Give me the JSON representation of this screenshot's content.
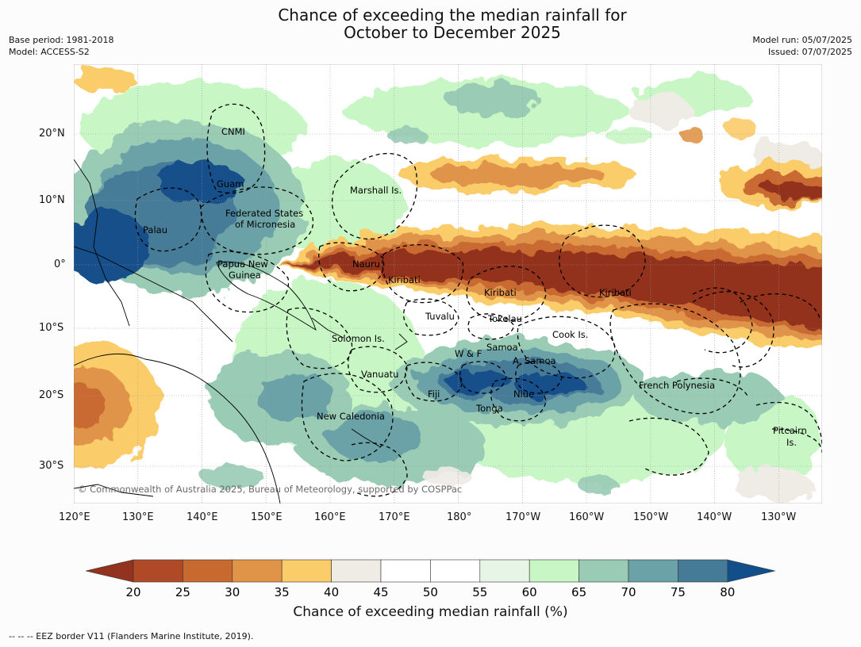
{
  "title_line1": "Chance of exceeding the median rainfall for",
  "title_line2": "October to December 2025",
  "meta_left": [
    "Base period: 1981-2018",
    "Model: ACCESS-S2"
  ],
  "meta_right": [
    "Model run: 05/07/2025",
    "Issued: 07/07/2025"
  ],
  "copyright": "© Commonwealth of Australia 2025, Bureau of Meteorology, supported by COSPPac",
  "lon_ticks": [
    "120°E",
    "130°E",
    "140°E",
    "150°E",
    "160°E",
    "170°E",
    "180°",
    "170°W",
    "160°W",
    "150°W",
    "140°W",
    "130°W"
  ],
  "lat_ticks": [
    "20°N",
    "10°N",
    "0°",
    "10°S",
    "20°S",
    "30°S"
  ],
  "region_labels": {
    "cnmi": "CNMI",
    "guam": "Guam",
    "marshall": "Marshall Is.",
    "fsm1": "Federated States",
    "fsm2": "of Micronesia",
    "palau": "Palau",
    "png1": "Papua New",
    "png2": "Guinea",
    "nauru": "Nauru",
    "kiribati_w": "Kiribati",
    "kiribati_c": "Kiribati",
    "kiribati_e": "Kiribati",
    "tuvalu": "Tuvalu",
    "tokelau": "Tokelau",
    "cook": "Cook Is.",
    "solomon": "Solomon Is.",
    "samoa": "Samoa",
    "wf": "W & F",
    "asamoa": "A. Samoa",
    "vanuatu": "Vanuatu",
    "fiji": "Fiji",
    "niue": "Niue",
    "tonga": "Tonga",
    "frpoly": "French Polynesia",
    "newcal": "New Caledonia",
    "pitcairn1": "Pitcairn",
    "pitcairn2": "Is."
  },
  "colorbar": {
    "label": "Chance of exceeding median rainfall (%)",
    "ticks": [
      "20",
      "25",
      "30",
      "35",
      "40",
      "45",
      "50",
      "55",
      "60",
      "65",
      "70",
      "75",
      "80"
    ],
    "colors": [
      "#93321f",
      "#b04a26",
      "#c86a30",
      "#e09448",
      "#fbcc6a",
      "#efece6",
      "#ffffff",
      "#ffffff",
      "#e6f5e6",
      "#c8f7c5",
      "#99cbb5",
      "#6aa2a8",
      "#467b98",
      "#124f8a"
    ]
  },
  "footer": "--  --  -- EEZ border V11 (Flanders Marine Institute, 2019)."
}
